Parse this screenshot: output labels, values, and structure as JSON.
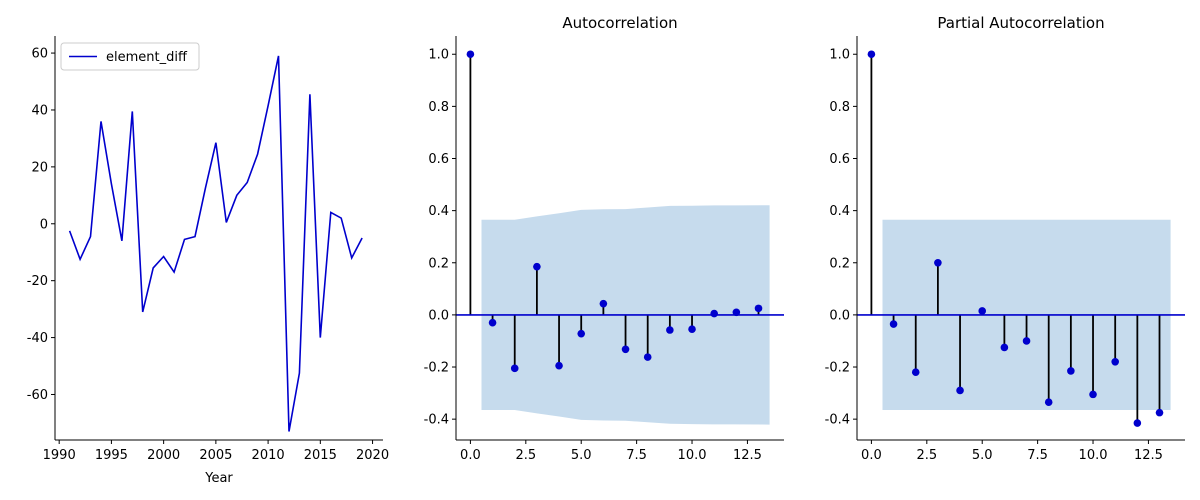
{
  "colors": {
    "series": "#0000cd",
    "stem": "#000000",
    "band": "#c6dbed",
    "axis": "#000000"
  },
  "chart_data": [
    {
      "type": "line",
      "title": "",
      "xlabel": "Year",
      "ylabel": "",
      "xlim": [
        1989.6,
        2021.0
      ],
      "ylim": [
        -76,
        66
      ],
      "xticks": [
        1990,
        1995,
        2000,
        2005,
        2010,
        2015,
        2020
      ],
      "yticks": [
        -60,
        -40,
        -20,
        0,
        20,
        40,
        60
      ],
      "legend": {
        "position": "top-left",
        "entries": [
          "element_diff"
        ]
      },
      "grid": false,
      "series": [
        {
          "name": "element_diff",
          "x": [
            1991,
            1992,
            1993,
            1994,
            1995,
            1996,
            1997,
            1998,
            1999,
            2000,
            2001,
            2002,
            2003,
            2004,
            2005,
            2006,
            2007,
            2008,
            2009,
            2010,
            2011,
            2012,
            2013,
            2014,
            2015,
            2016,
            2017,
            2018,
            2019
          ],
          "values": [
            -2.5,
            -12.5,
            -4.5,
            36,
            14,
            -6,
            39.5,
            -31,
            -15.5,
            -11.5,
            -17,
            -5.5,
            -4.5,
            12.5,
            28.5,
            0.5,
            10,
            14.5,
            24.5,
            41.5,
            59,
            -73,
            -52.5,
            45.5,
            -40,
            4,
            2,
            -12,
            -5
          ]
        }
      ]
    },
    {
      "type": "stem",
      "title": "Autocorrelation",
      "xlabel": "",
      "ylabel": "",
      "xlim": [
        -0.65,
        14.15
      ],
      "ylim": [
        -0.48,
        1.07
      ],
      "xticks": [
        "0.0",
        "2.5",
        "5.0",
        "7.5",
        "10.0",
        "12.5"
      ],
      "yticks": [
        "-0.4",
        "-0.2",
        "0.0",
        "0.2",
        "0.4",
        "0.6",
        "0.8",
        "1.0"
      ],
      "grid": false,
      "lags": [
        0,
        1,
        2,
        3,
        4,
        5,
        6,
        7,
        8,
        9,
        10,
        11,
        12,
        13
      ],
      "values": [
        1.0,
        -0.03,
        -0.205,
        0.185,
        -0.195,
        -0.072,
        0.043,
        -0.132,
        -0.162,
        -0.058,
        -0.055,
        0.005,
        0.01,
        0.025
      ],
      "confidence_band": {
        "x": [
          0.5,
          2.0,
          3.0,
          4.0,
          5.0,
          6.0,
          7.0,
          8.0,
          9.0,
          10.0,
          11.0,
          12.0,
          13.5
        ],
        "upper": [
          0.365,
          0.365,
          0.378,
          0.39,
          0.403,
          0.405,
          0.406,
          0.412,
          0.418,
          0.419,
          0.42,
          0.42,
          0.421
        ]
      }
    },
    {
      "type": "stem",
      "title": "Partial Autocorrelation",
      "xlabel": "",
      "ylabel": "",
      "xlim": [
        -0.65,
        14.15
      ],
      "ylim": [
        -0.48,
        1.07
      ],
      "xticks": [
        "0.0",
        "2.5",
        "5.0",
        "7.5",
        "10.0",
        "12.5"
      ],
      "yticks": [
        "-0.4",
        "-0.2",
        "0.0",
        "0.2",
        "0.4",
        "0.6",
        "0.8",
        "1.0"
      ],
      "grid": false,
      "lags": [
        0,
        1,
        2,
        3,
        4,
        5,
        6,
        7,
        8,
        9,
        10,
        11,
        12,
        13
      ],
      "values": [
        1.0,
        -0.035,
        -0.22,
        0.2,
        -0.29,
        0.015,
        -0.125,
        -0.1,
        -0.335,
        -0.215,
        -0.305,
        -0.18,
        -0.415,
        -0.375
      ],
      "confidence_band": {
        "x": [
          0.5,
          13.5
        ],
        "upper": [
          0.365,
          0.365
        ]
      }
    }
  ]
}
